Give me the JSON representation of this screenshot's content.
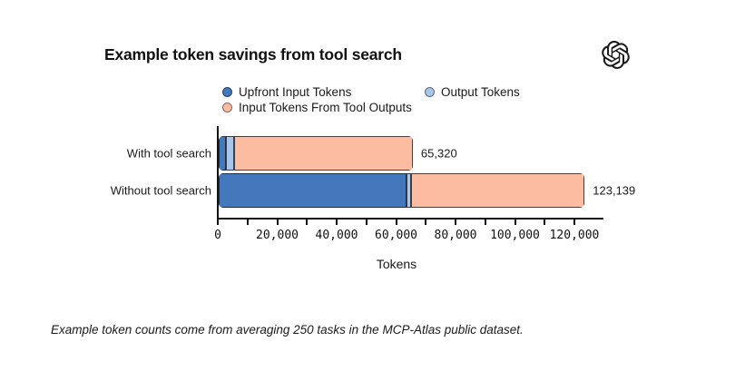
{
  "header": {
    "title": "Example token savings from tool search",
    "logo": "openai-logo"
  },
  "chart_data": {
    "type": "bar",
    "orientation": "horizontal",
    "stacked": true,
    "categories": [
      "With tool search",
      "Without tool search"
    ],
    "series": [
      {
        "name": "Upfront Input Tokens",
        "color": "#4478BD",
        "values": [
          2440,
          63200
        ]
      },
      {
        "name": "Output Tokens",
        "color": "#A9C6EA",
        "values": [
          2750,
          1530
        ]
      },
      {
        "name": "Input Tokens From Tool Outputs",
        "color": "#FBBCA2",
        "values": [
          60130,
          58409
        ]
      }
    ],
    "totals": [
      65320,
      123139
    ],
    "total_labels": [
      "65,320",
      "123,139"
    ],
    "xlabel": "Tokens",
    "x_ticks": [
      0,
      20000,
      40000,
      60000,
      80000,
      100000,
      120000
    ],
    "x_tick_labels": [
      "0",
      "20,000",
      "40,000",
      "60,000",
      "80,000",
      "100,000",
      "120,000"
    ],
    "x_minor_step": 10000,
    "xmax": 120000,
    "axis_color": "#141414",
    "legend_position": "top",
    "grid": false
  },
  "footer": {
    "caption": "Example token counts come from averaging 250 tasks in the MCP-Atlas public dataset."
  }
}
